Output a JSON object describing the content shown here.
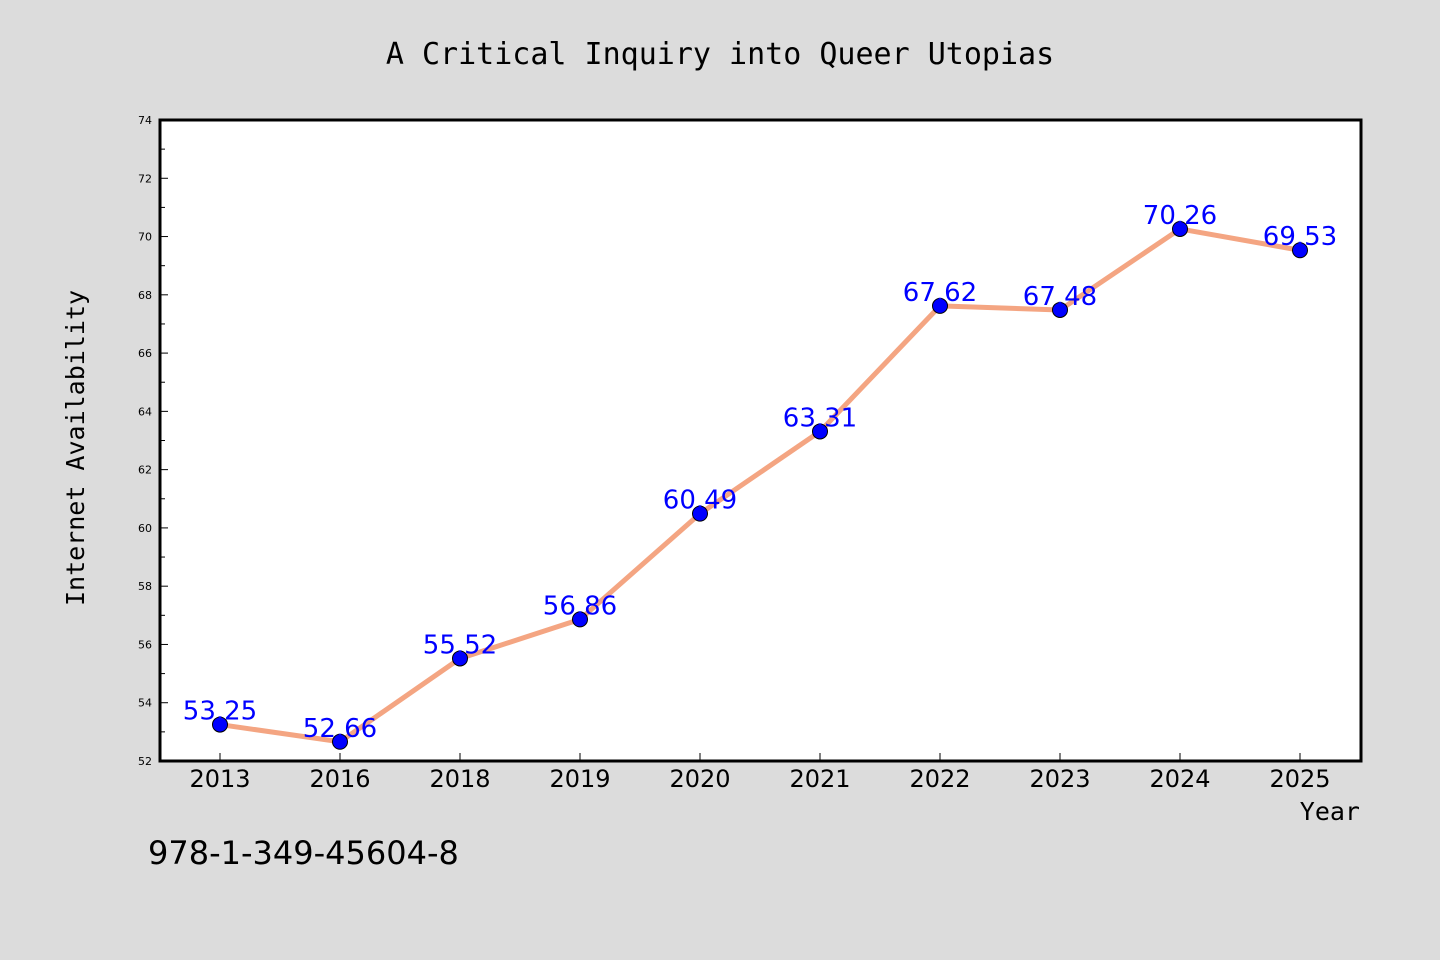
{
  "chart_data": {
    "type": "line",
    "title": "A Critical Inquiry into Queer Utopias",
    "xlabel": "Year",
    "ylabel": "Internet Availability",
    "categories": [
      "2013",
      "2016",
      "2018",
      "2019",
      "2020",
      "2021",
      "2022",
      "2023",
      "2024",
      "2025"
    ],
    "series": [
      {
        "values": [
          53.25,
          52.66,
          55.52,
          56.86,
          60.49,
          63.31,
          67.62,
          67.48,
          70.26,
          69.53
        ]
      }
    ],
    "data_labels": [
      "53.25",
      "52.66",
      "55.52",
      "56.86",
      "60.49",
      "63.31",
      "67.62",
      "67.48",
      "70.26",
      "69.53"
    ],
    "ylim": [
      52,
      74
    ],
    "yticks": [
      "52",
      "54",
      "56",
      "58",
      "60",
      "62",
      "64",
      "66",
      "68",
      "70",
      "72",
      "74"
    ],
    "grid": false,
    "colors": {
      "background": "#dcdcdc",
      "plot_background": "#ffffff",
      "line": "#f4a582",
      "marker": "#0000ff",
      "data_label": "#0000ff"
    }
  },
  "footer": {
    "isbn": "978-1-349-45604-8"
  }
}
